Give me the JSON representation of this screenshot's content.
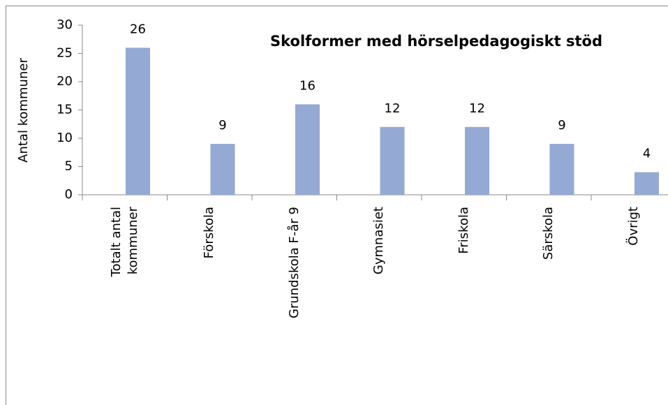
{
  "chart_data": {
    "type": "bar",
    "title": "Skolformer med hörselpedagogiskt stöd",
    "y_label": "Antal kommuner",
    "categories": [
      "Totalt antal kommuner",
      "Förskola",
      "Grundskola F-år 9",
      "Gymnasiet",
      "Friskola",
      "Särskola",
      "Övrigt"
    ],
    "values": [
      26,
      9,
      16,
      12,
      12,
      9,
      4
    ],
    "color": "#94a9d3",
    "ylim": [
      0,
      30
    ],
    "yticks": [
      0,
      5,
      10,
      15,
      20,
      25,
      30
    ],
    "grid": false
  }
}
